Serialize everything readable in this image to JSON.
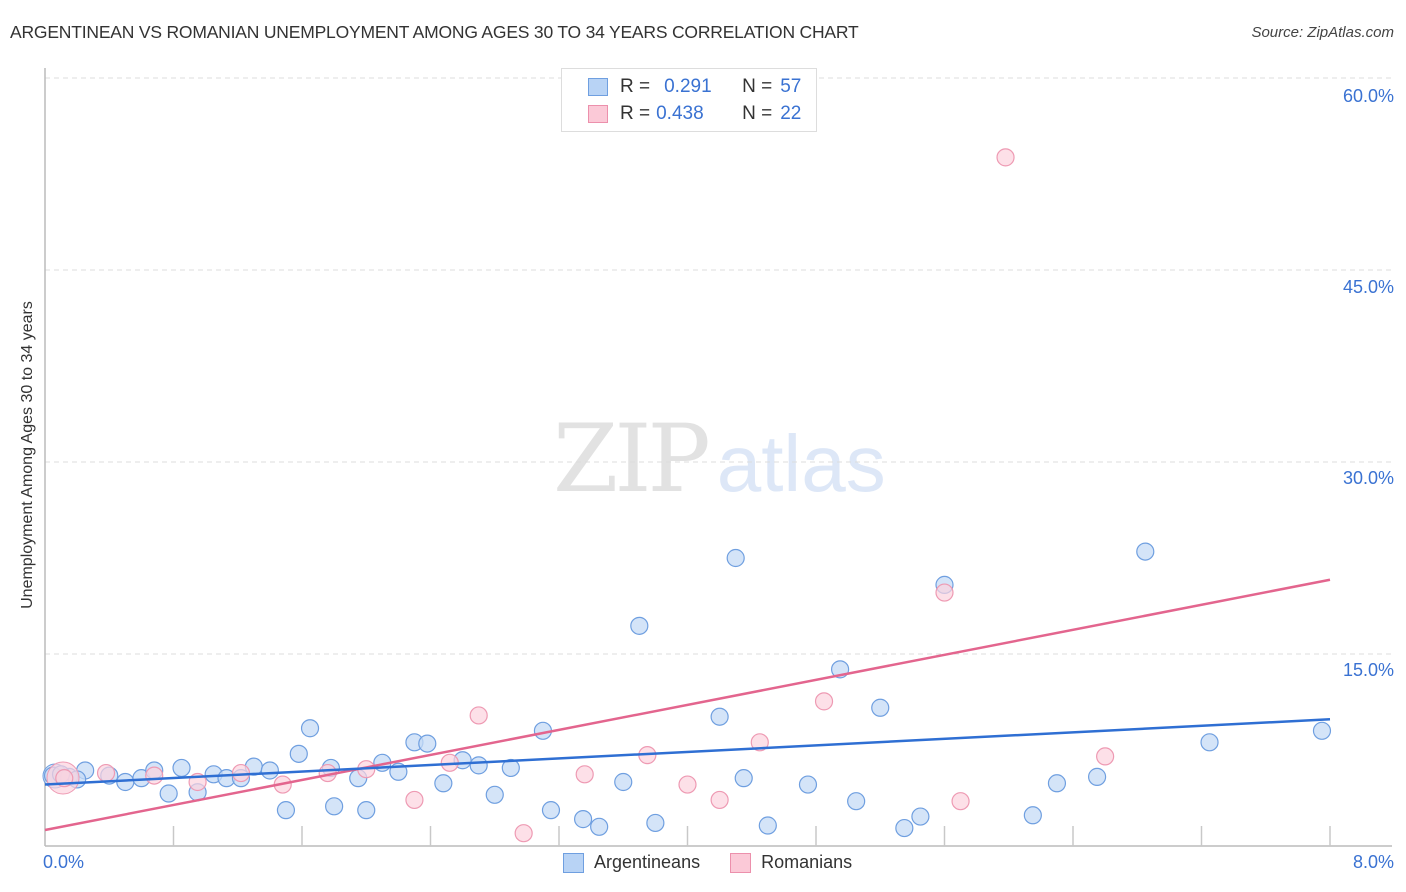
{
  "header": {
    "title": "ARGENTINEAN VS ROMANIAN UNEMPLOYMENT AMONG AGES 30 TO 34 YEARS CORRELATION CHART",
    "source": "Source: ZipAtlas.com"
  },
  "watermark": {
    "zip": "ZIP",
    "atlas": "atlas"
  },
  "legend": {
    "rows": [
      {
        "swatch_color": "#b8d3f5",
        "border_color": "#6f9fe0",
        "r_label": "R =",
        "r_value": "0.291",
        "n_label": "N =",
        "n_value": "57"
      },
      {
        "swatch_color": "#fbc9d7",
        "border_color": "#ec90ac",
        "r_label": "R =",
        "r_value": "0.438",
        "n_label": "N =",
        "n_value": "22"
      }
    ]
  },
  "axes": {
    "y_label": "Unemployment Among Ages 30 to 34 years",
    "y_ticks": [
      "60.0%",
      "45.0%",
      "30.0%",
      "15.0%"
    ],
    "x_ticks": [
      "0.0%",
      "8.0%"
    ]
  },
  "bottom_legend": [
    {
      "label": "Argentineans",
      "color": "#b8d3f5",
      "border": "#6f9fe0"
    },
    {
      "label": "Romanians",
      "color": "#fbc9d7",
      "border": "#ec90ac"
    }
  ],
  "colors": {
    "blue_fill": "#c5dbf6",
    "blue_stroke": "#6f9fe0",
    "blue_line": "#2f6fd3",
    "pink_fill": "#fcd3de",
    "pink_stroke": "#ee9ab3",
    "pink_line": "#e3658e",
    "axis_text": "#3a72d2"
  },
  "chart_data": {
    "type": "scatter",
    "title": "ARGENTINEAN VS ROMANIAN UNEMPLOYMENT AMONG AGES 30 TO 34 YEARS CORRELATION CHART",
    "xlabel": "",
    "ylabel": "Unemployment Among Ages 30 to 34 years",
    "xlim": [
      0,
      8
    ],
    "ylim": [
      0,
      62
    ],
    "x_tick_labels": [
      "0.0%",
      "8.0%"
    ],
    "y_tick_labels": [
      "15.0%",
      "30.0%",
      "45.0%",
      "60.0%"
    ],
    "grid": true,
    "legend_position": "bottom",
    "series": [
      {
        "name": "Argentineans",
        "r": 0.291,
        "n": 57,
        "trend": {
          "x": [
            0,
            8
          ],
          "y": [
            4.8,
            9.9
          ]
        },
        "points": [
          [
            0.05,
            5.5
          ],
          [
            0.15,
            5.4
          ],
          [
            0.25,
            5.9
          ],
          [
            0.4,
            5.5
          ],
          [
            0.5,
            5.0
          ],
          [
            0.6,
            5.3
          ],
          [
            0.68,
            5.9
          ],
          [
            0.77,
            4.1
          ],
          [
            0.85,
            6.1
          ],
          [
            0.95,
            4.2
          ],
          [
            1.05,
            5.6
          ],
          [
            1.13,
            5.3
          ],
          [
            1.22,
            5.3
          ],
          [
            1.3,
            6.2
          ],
          [
            1.4,
            5.9
          ],
          [
            1.5,
            2.8
          ],
          [
            1.58,
            7.2
          ],
          [
            1.65,
            9.2
          ],
          [
            1.78,
            6.1
          ],
          [
            1.8,
            3.1
          ],
          [
            1.95,
            5.3
          ],
          [
            2.0,
            2.8
          ],
          [
            2.1,
            6.5
          ],
          [
            2.2,
            5.8
          ],
          [
            2.3,
            8.1
          ],
          [
            2.38,
            8.0
          ],
          [
            2.48,
            4.9
          ],
          [
            2.6,
            6.7
          ],
          [
            2.7,
            6.3
          ],
          [
            2.8,
            4.0
          ],
          [
            2.9,
            6.1
          ],
          [
            3.1,
            9.0
          ],
          [
            3.15,
            2.8
          ],
          [
            3.35,
            2.1
          ],
          [
            3.45,
            1.5
          ],
          [
            3.6,
            5.0
          ],
          [
            3.7,
            17.2
          ],
          [
            3.8,
            1.8
          ],
          [
            4.2,
            10.1
          ],
          [
            4.3,
            22.5
          ],
          [
            4.35,
            5.3
          ],
          [
            4.5,
            1.6
          ],
          [
            4.75,
            4.8
          ],
          [
            4.95,
            13.8
          ],
          [
            5.05,
            3.5
          ],
          [
            5.2,
            10.8
          ],
          [
            5.35,
            1.4
          ],
          [
            5.45,
            2.3
          ],
          [
            5.6,
            20.4
          ],
          [
            6.15,
            2.4
          ],
          [
            6.3,
            4.9
          ],
          [
            6.55,
            5.4
          ],
          [
            6.85,
            23.0
          ],
          [
            7.25,
            8.1
          ],
          [
            7.95,
            9.0
          ],
          [
            0.1,
            5.6
          ],
          [
            0.2,
            5.2
          ]
        ]
      },
      {
        "name": "Romanians",
        "r": 0.438,
        "n": 22,
        "trend": {
          "x": [
            0,
            8
          ],
          "y": [
            1.25,
            20.8
          ]
        },
        "points": [
          [
            0.12,
            5.3
          ],
          [
            0.38,
            5.7
          ],
          [
            0.68,
            5.5
          ],
          [
            0.95,
            5.0
          ],
          [
            1.22,
            5.7
          ],
          [
            1.48,
            4.8
          ],
          [
            1.76,
            5.7
          ],
          [
            2.0,
            6.0
          ],
          [
            2.3,
            3.6
          ],
          [
            2.52,
            6.5
          ],
          [
            2.7,
            10.2
          ],
          [
            2.98,
            1.0
          ],
          [
            3.36,
            5.6
          ],
          [
            3.75,
            7.1
          ],
          [
            4.0,
            4.8
          ],
          [
            4.2,
            3.6
          ],
          [
            4.45,
            8.1
          ],
          [
            4.85,
            11.3
          ],
          [
            5.6,
            19.8
          ],
          [
            5.7,
            3.5
          ],
          [
            5.98,
            53.8
          ],
          [
            6.6,
            7.0
          ]
        ]
      }
    ]
  }
}
